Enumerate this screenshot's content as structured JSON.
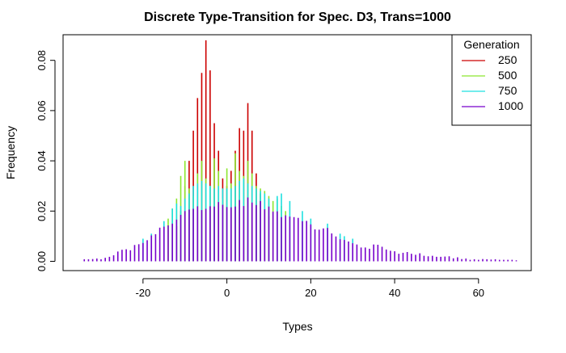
{
  "chart_data": {
    "type": "bar",
    "title": "Discrete Type-Transition for Spec. D3, Trans=1000",
    "xlabel": "Types",
    "ylabel": "Frequency",
    "xlim": [
      -35,
      70
    ],
    "ylim": [
      0,
      0.09
    ],
    "xticks": [
      "-20",
      "0",
      "20",
      "40",
      "60"
    ],
    "yticks": [
      "0.00",
      "0.02",
      "0.04",
      "0.06",
      "0.08"
    ],
    "legend": {
      "title": "Generation",
      "placement": "top-right"
    },
    "series": [
      {
        "name": "250",
        "color": "#cc0000",
        "x": [
          -12,
          -11,
          -10,
          -9,
          -8,
          -7,
          -6,
          -5,
          -4,
          -3,
          -2,
          -1,
          0,
          1,
          2,
          3,
          4,
          5,
          6,
          7,
          8,
          9,
          10
        ],
        "values": [
          0.014,
          0.02,
          0.03,
          0.04,
          0.052,
          0.065,
          0.075,
          0.088,
          0.076,
          0.055,
          0.044,
          0.033,
          0.03,
          0.036,
          0.044,
          0.053,
          0.052,
          0.063,
          0.052,
          0.035,
          0.027,
          0.021,
          0.018
        ]
      },
      {
        "name": "500",
        "color": "#8ce62e",
        "x": [
          -14,
          -13,
          -12,
          -11,
          -10,
          -9,
          -8,
          -7,
          -6,
          -5,
          -4,
          -3,
          -2,
          -1,
          0,
          1,
          2,
          3,
          4,
          5,
          6,
          7,
          8,
          9,
          10,
          11,
          12,
          13,
          14
        ],
        "values": [
          0.017,
          0.021,
          0.025,
          0.034,
          0.04,
          0.029,
          0.026,
          0.035,
          0.04,
          0.033,
          0.03,
          0.041,
          0.036,
          0.025,
          0.037,
          0.031,
          0.043,
          0.036,
          0.034,
          0.04,
          0.035,
          0.03,
          0.029,
          0.028,
          0.026,
          0.024,
          0.025,
          0.022,
          0.02
        ]
      },
      {
        "name": "750",
        "color": "#1ee0e0",
        "x": [
          -20,
          -18,
          -15,
          -13,
          -12,
          -11,
          -10,
          -9,
          -8,
          -7,
          -6,
          -5,
          -4,
          -3,
          -2,
          -1,
          0,
          1,
          2,
          3,
          4,
          5,
          6,
          7,
          8,
          9,
          10,
          12,
          13,
          15,
          18,
          20,
          24,
          27,
          28,
          30
        ],
        "values": [
          0.009,
          0.011,
          0.016,
          0.021,
          0.023,
          0.022,
          0.025,
          0.027,
          0.03,
          0.031,
          0.032,
          0.031,
          0.03,
          0.029,
          0.03,
          0.029,
          0.029,
          0.029,
          0.03,
          0.032,
          0.033,
          0.031,
          0.03,
          0.029,
          0.028,
          0.027,
          0.025,
          0.026,
          0.027,
          0.024,
          0.02,
          0.017,
          0.015,
          0.011,
          0.01,
          0.009
        ]
      },
      {
        "name": "1000",
        "color": "#7700cc",
        "x": [
          -34,
          -33,
          -32,
          -31,
          -30,
          -29,
          -28,
          -27,
          -26,
          -25,
          -24,
          -23,
          -22,
          -21,
          -20,
          -19,
          -18,
          -17,
          -16,
          -15,
          -14,
          -13,
          -12,
          -11,
          -10,
          -9,
          -8,
          -7,
          -6,
          -5,
          -4,
          -3,
          -2,
          -1,
          0,
          1,
          2,
          3,
          4,
          5,
          6,
          7,
          8,
          9,
          10,
          11,
          12,
          13,
          14,
          15,
          16,
          17,
          18,
          19,
          20,
          21,
          22,
          23,
          24,
          25,
          26,
          27,
          28,
          29,
          30,
          31,
          32,
          33,
          34,
          35,
          36,
          37,
          38,
          39,
          40,
          41,
          42,
          43,
          44,
          45,
          46,
          47,
          48,
          49,
          50,
          51,
          52,
          53,
          54,
          55,
          56,
          57,
          58,
          59,
          60,
          61,
          62,
          63,
          64,
          65,
          66,
          67,
          68,
          69
        ],
        "values": [
          0.0008,
          0.0008,
          0.0009,
          0.0011,
          0.0008,
          0.0014,
          0.0018,
          0.0024,
          0.0039,
          0.0046,
          0.0048,
          0.0044,
          0.0065,
          0.0068,
          0.0073,
          0.0084,
          0.0103,
          0.0108,
          0.0134,
          0.0138,
          0.0143,
          0.015,
          0.0166,
          0.0185,
          0.02,
          0.0206,
          0.0209,
          0.0219,
          0.0204,
          0.0209,
          0.0219,
          0.0218,
          0.0236,
          0.0225,
          0.0216,
          0.0215,
          0.0218,
          0.0244,
          0.022,
          0.0254,
          0.0234,
          0.0224,
          0.024,
          0.0207,
          0.0218,
          0.0198,
          0.0199,
          0.0176,
          0.0183,
          0.0178,
          0.0176,
          0.0173,
          0.016,
          0.0161,
          0.0147,
          0.0127,
          0.0126,
          0.0131,
          0.0133,
          0.0111,
          0.0099,
          0.0088,
          0.0085,
          0.0079,
          0.0072,
          0.0067,
          0.0055,
          0.0055,
          0.005,
          0.0067,
          0.0066,
          0.0058,
          0.0047,
          0.0042,
          0.004,
          0.003,
          0.0034,
          0.0037,
          0.003,
          0.0026,
          0.0032,
          0.0022,
          0.002,
          0.0022,
          0.0018,
          0.0018,
          0.0019,
          0.002,
          0.0012,
          0.0016,
          0.0009,
          0.0011,
          0.0006,
          0.0008,
          0.0006,
          0.0009,
          0.0008,
          0.0007,
          0.0008,
          0.0006,
          0.0006,
          0.0006,
          0.0006,
          0.0004
        ]
      }
    ]
  }
}
